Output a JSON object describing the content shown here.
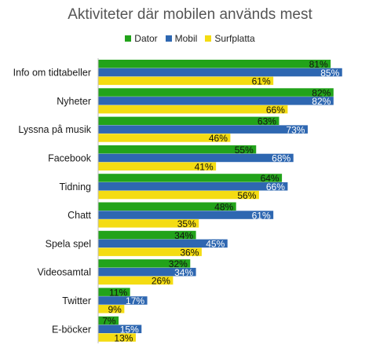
{
  "chart_data": {
    "type": "bar",
    "orientation": "horizontal",
    "title": "Aktiviteter där mobilen används mest",
    "categories": [
      "Info om tidtabeller",
      "Nyheter",
      "Lyssna på musik",
      "Facebook",
      "Tidning",
      "Chatt",
      "Spela spel",
      "Videosamtal",
      "Twitter",
      "E-böcker"
    ],
    "series": [
      {
        "name": "Dator",
        "color": "#22a31a",
        "values": [
          81,
          82,
          63,
          55,
          64,
          48,
          34,
          32,
          11,
          7
        ]
      },
      {
        "name": "Mobil",
        "color": "#2e67b1",
        "values": [
          85,
          82,
          73,
          68,
          66,
          61,
          45,
          34,
          17,
          15
        ]
      },
      {
        "name": "Surfplatta",
        "color": "#f4dc12",
        "values": [
          61,
          66,
          46,
          41,
          56,
          35,
          36,
          26,
          9,
          13
        ]
      }
    ],
    "value_suffix": "%",
    "xlim": [
      0,
      100
    ],
    "legend_position": "top",
    "grid": false
  }
}
